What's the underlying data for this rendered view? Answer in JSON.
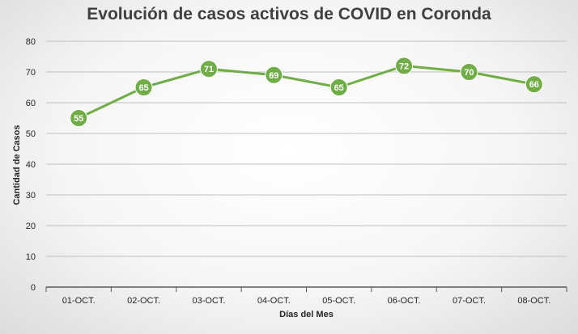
{
  "chart_data": {
    "type": "line",
    "title": "Evolución de casos activos de COVID en Coronda",
    "xlabel": "Días del Mes",
    "ylabel": "Cantidad de Casos",
    "categories": [
      "01-OCT.",
      "02-OCT.",
      "03-OCT.",
      "04-OCT.",
      "05-OCT.",
      "06-OCT.",
      "07-OCT.",
      "08-OCT."
    ],
    "series": [
      {
        "values": [
          55,
          65,
          71,
          69,
          65,
          72,
          70,
          66
        ],
        "color": "#70AD47"
      }
    ],
    "ylim": [
      0,
      80
    ],
    "yticks": [
      0,
      10,
      20,
      30,
      40,
      50,
      60,
      70,
      80
    ],
    "grid": true,
    "legend": "none",
    "data_labels": true
  }
}
